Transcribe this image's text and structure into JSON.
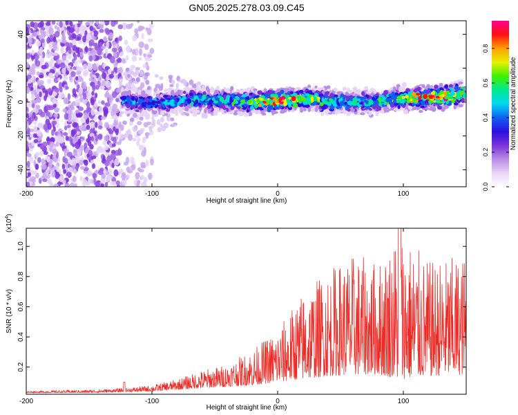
{
  "title": "GN05.2025.278.03.09.C45",
  "chart_data": [
    {
      "type": "heatmap",
      "name": "spectrogram",
      "xlabel": "Height of straight line (km)",
      "ylabel": "Frequency (Hz)",
      "xlim": [
        -200,
        150
      ],
      "ylim": [
        -50,
        48
      ],
      "xticks": [
        -200,
        -100,
        0,
        100
      ],
      "yticks": [
        -40,
        -20,
        0,
        20,
        40
      ],
      "colorbar": {
        "label": "Normalized spectral amplitude",
        "range": [
          0,
          0.96
        ],
        "ticks": [
          0.0,
          0.2,
          0.4,
          0.6,
          0.8
        ],
        "colors": [
          "#ffffff",
          "#e8d4f6",
          "#b88be6",
          "#7a30d8",
          "#2a10e0",
          "#1060f0",
          "#00d8f0",
          "#00e890",
          "#40f000",
          "#e8f000",
          "#ffa000",
          "#ff1010",
          "#ff0090"
        ]
      },
      "ridge": {
        "x": [
          -125,
          -100,
          -75,
          -50,
          -25,
          0,
          25,
          50,
          75,
          100,
          125,
          150
        ],
        "center_hz": [
          1,
          -1,
          1,
          1,
          0,
          1,
          2,
          0,
          0,
          2,
          3,
          5
        ],
        "peak_amplitude": [
          0.45,
          0.45,
          0.5,
          0.55,
          0.6,
          0.92,
          0.7,
          0.55,
          0.55,
          0.7,
          0.92,
          0.75
        ]
      },
      "noise_region_x": [
        -200,
        -125
      ]
    },
    {
      "type": "line",
      "name": "snr",
      "xlabel": "Height of straight line (km)",
      "ylabel": "SNR (10 * v/v)",
      "scale_label": "(x10",
      "scale_exponent": "4",
      "xlim": [
        -200,
        150
      ],
      "ylim": [
        0.02,
        1.12
      ],
      "xticks": [
        -200,
        -100,
        0,
        100
      ],
      "yticks": [
        0.2,
        0.4,
        0.6,
        0.8,
        1.0
      ],
      "color": "#ee2a24",
      "envelope": {
        "x": [
          -200,
          -150,
          -122,
          -100,
          -80,
          -60,
          -40,
          -20,
          0,
          20,
          40,
          60,
          80,
          97,
          120,
          150
        ],
        "baseline": [
          0.03,
          0.03,
          0.035,
          0.04,
          0.05,
          0.06,
          0.07,
          0.08,
          0.1,
          0.12,
          0.14,
          0.15,
          0.15,
          0.12,
          0.14,
          0.15
        ],
        "peak": [
          0.04,
          0.05,
          0.06,
          0.08,
          0.12,
          0.18,
          0.22,
          0.32,
          0.45,
          0.7,
          0.85,
          0.95,
          0.9,
          1.12,
          0.9,
          0.95
        ]
      }
    }
  ]
}
